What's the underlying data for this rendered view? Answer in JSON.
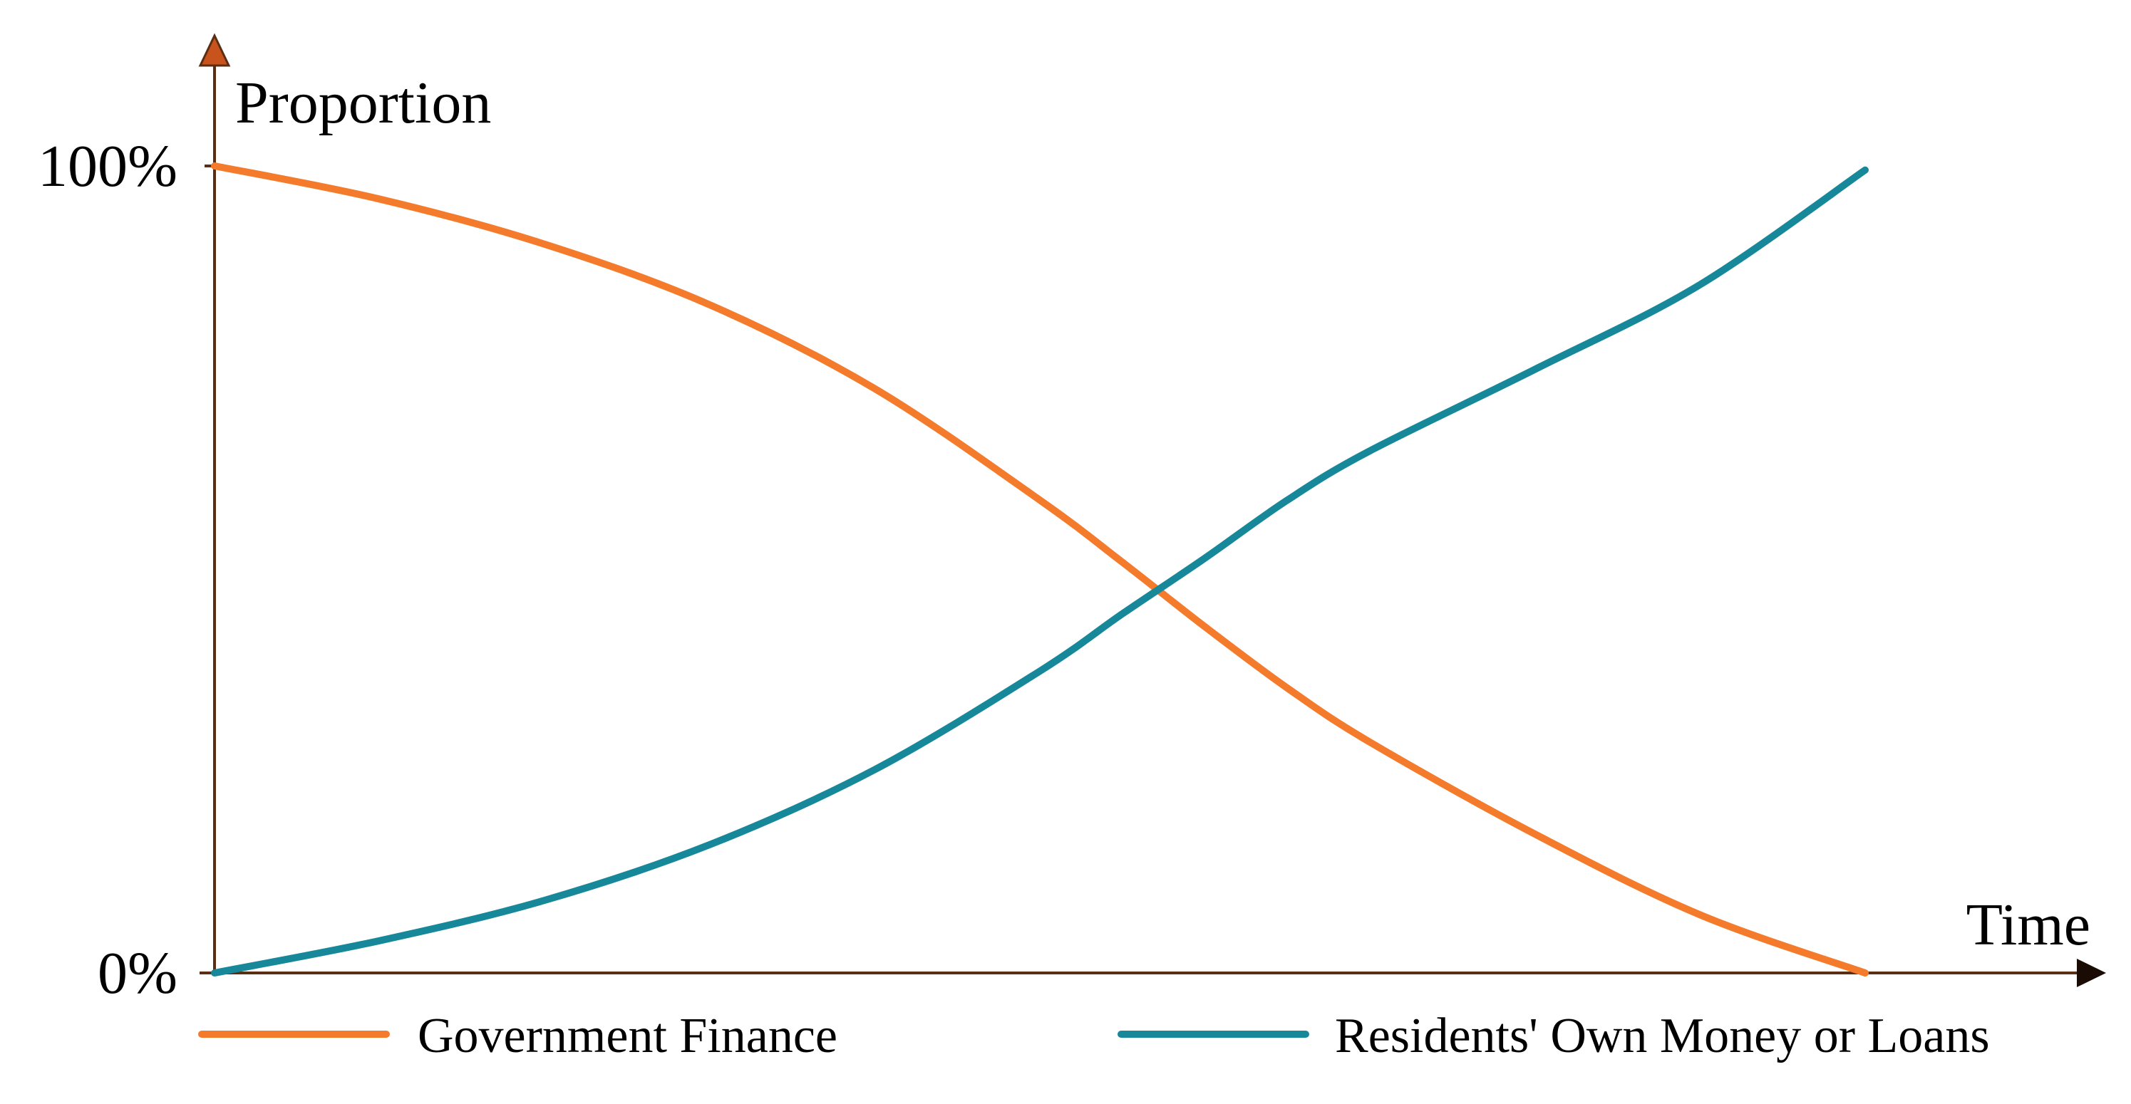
{
  "chart_data": {
    "type": "line",
    "title": "",
    "xlabel": "Time",
    "ylabel": "Proportion",
    "ylim": [
      0,
      100
    ],
    "xlim": [
      0,
      1
    ],
    "y_ticks": [
      {
        "value": 0,
        "label": "0%"
      },
      {
        "value": 100,
        "label": "100%"
      }
    ],
    "grid": false,
    "legend_position": "bottom",
    "axis_color": "#5a2e12",
    "series": [
      {
        "name": "Government Finance",
        "color": "#f47b2c",
        "x": [
          0,
          0.1,
          0.2,
          0.3,
          0.4,
          0.5,
          0.55,
          0.6,
          0.65,
          0.7,
          0.8,
          0.9,
          1.0
        ],
        "y": [
          100,
          95.9,
          90.3,
          82.8,
          72.4,
          58.6,
          50.9,
          42.9,
          35.3,
          28.6,
          17.2,
          7.2,
          0
        ]
      },
      {
        "name": "Residents' Own Money or Loans",
        "color": "#16889a",
        "x": [
          0,
          0.1,
          0.2,
          0.3,
          0.4,
          0.5,
          0.55,
          0.6,
          0.65,
          0.7,
          0.8,
          0.9,
          1.0
        ],
        "y": [
          0,
          4.0,
          9.0,
          15.9,
          25.2,
          37.4,
          44.5,
          51.4,
          58.6,
          64.7,
          74.8,
          85.3,
          99.5
        ]
      }
    ]
  }
}
